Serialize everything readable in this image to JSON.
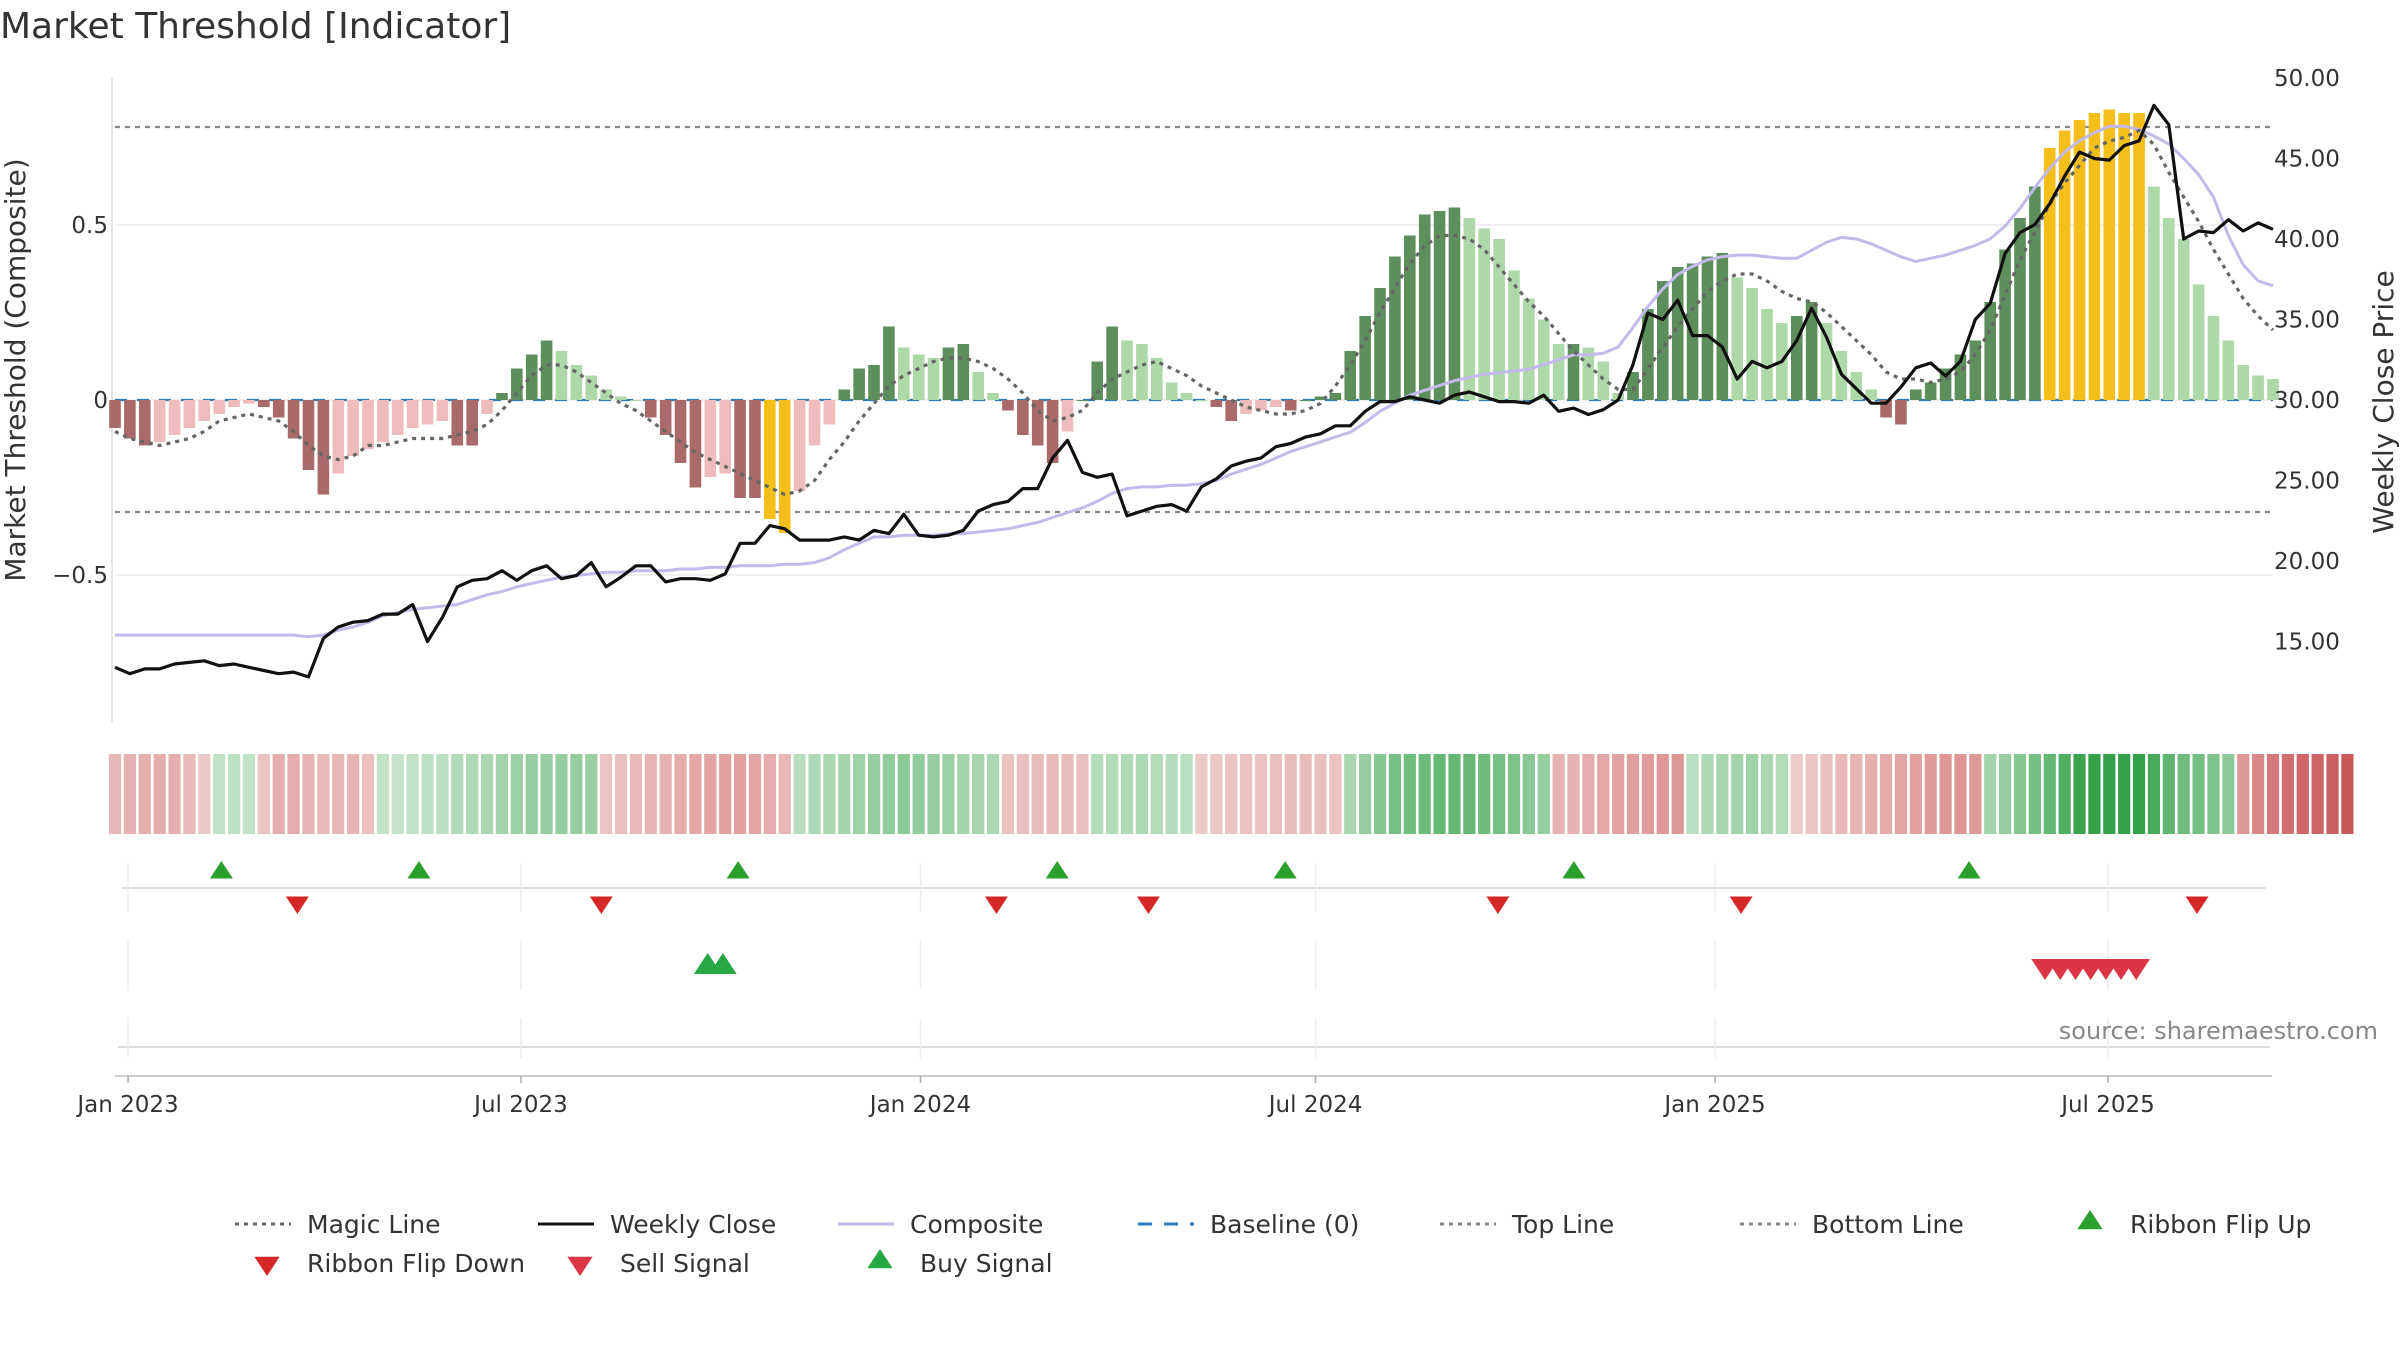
{
  "chart_data": {
    "type": "bar",
    "title": "Market Threshold [Indicator]",
    "ylabel": "Market Threshold (Composite)",
    "y2label": "Weekly Close Price",
    "ylim": [
      -0.92,
      0.92
    ],
    "y2lim": [
      10.0,
      50.0
    ],
    "y_ticks": [
      0.5,
      0,
      -0.5
    ],
    "y_tick_labels": [
      "0.5",
      "0",
      "−0.5"
    ],
    "y2_ticks": [
      50,
      45,
      40,
      35,
      30,
      25,
      20,
      15
    ],
    "y2_tick_labels": [
      "50.00",
      "45.00",
      "40.00",
      "35.00",
      "30.00",
      "25.00",
      "20.00",
      "15.00"
    ],
    "x_start": "2022-12-26",
    "x_end": "2025-09-15",
    "x_ticks": [
      "2023-01-01",
      "2023-07-01",
      "2024-01-01",
      "2024-07-01",
      "2025-01-01",
      "2025-07-01"
    ],
    "x_tick_labels": [
      "Jan 2023",
      "Jul 2023",
      "Jan 2024",
      "Jul 2024",
      "Jan 2025",
      "Jul 2025"
    ],
    "top_line": 0.78,
    "bottom_line": -0.32,
    "baseline": 0,
    "composite_bars": [
      -0.08,
      -0.11,
      -0.13,
      -0.12,
      -0.1,
      -0.08,
      -0.06,
      -0.04,
      -0.02,
      -0.01,
      -0.02,
      -0.05,
      -0.11,
      -0.2,
      -0.27,
      -0.21,
      -0.16,
      -0.14,
      -0.12,
      -0.1,
      -0.08,
      -0.07,
      -0.06,
      -0.13,
      -0.13,
      -0.04,
      0.02,
      0.09,
      0.13,
      0.17,
      0.14,
      0.1,
      0.07,
      0.03,
      0.01,
      0.0,
      -0.05,
      -0.1,
      -0.18,
      -0.25,
      -0.22,
      -0.21,
      -0.28,
      -0.28,
      -0.34,
      -0.38,
      -0.26,
      -0.13,
      -0.07,
      0.03,
      0.09,
      0.1,
      0.21,
      0.15,
      0.13,
      0.12,
      0.15,
      0.16,
      0.08,
      0.02,
      -0.03,
      -0.1,
      -0.13,
      -0.18,
      -0.09,
      0.0,
      0.11,
      0.21,
      0.17,
      0.16,
      0.12,
      0.05,
      0.02,
      0.0,
      -0.02,
      -0.06,
      -0.04,
      -0.03,
      -0.02,
      -0.03,
      0.0,
      0.01,
      0.02,
      0.14,
      0.24,
      0.32,
      0.41,
      0.47,
      0.53,
      0.54,
      0.55,
      0.52,
      0.49,
      0.46,
      0.37,
      0.29,
      0.23,
      0.16,
      0.16,
      0.15,
      0.11,
      0.02,
      0.08,
      0.26,
      0.34,
      0.38,
      0.39,
      0.41,
      0.42,
      0.35,
      0.32,
      0.26,
      0.22,
      0.24,
      0.28,
      0.22,
      0.14,
      0.08,
      0.03,
      -0.05,
      -0.07,
      0.03,
      0.05,
      0.09,
      0.13,
      0.17,
      0.28,
      0.43,
      0.52,
      0.61,
      0.72,
      0.77,
      0.8,
      0.82,
      0.83,
      0.82,
      0.82,
      0.61,
      0.52,
      0.46,
      0.33,
      0.24,
      0.17,
      0.1,
      0.07,
      0.06
    ],
    "magic_line": [
      -0.09,
      -0.11,
      -0.12,
      -0.13,
      -0.12,
      -0.11,
      -0.09,
      -0.06,
      -0.05,
      -0.04,
      -0.05,
      -0.06,
      -0.09,
      -0.13,
      -0.16,
      -0.17,
      -0.16,
      -0.13,
      -0.13,
      -0.12,
      -0.11,
      -0.11,
      -0.11,
      -0.1,
      -0.09,
      -0.07,
      -0.03,
      0.02,
      0.07,
      0.1,
      0.1,
      0.08,
      0.05,
      0.02,
      -0.01,
      -0.03,
      -0.06,
      -0.09,
      -0.12,
      -0.15,
      -0.17,
      -0.19,
      -0.21,
      -0.23,
      -0.25,
      -0.27,
      -0.26,
      -0.23,
      -0.17,
      -0.12,
      -0.06,
      -0.01,
      0.04,
      0.07,
      0.09,
      0.11,
      0.12,
      0.12,
      0.11,
      0.09,
      0.06,
      0.02,
      -0.03,
      -0.06,
      -0.05,
      -0.03,
      0.02,
      0.06,
      0.08,
      0.1,
      0.11,
      0.09,
      0.07,
      0.04,
      0.02,
      0.0,
      -0.02,
      -0.03,
      -0.04,
      -0.04,
      -0.03,
      -0.01,
      0.04,
      0.1,
      0.17,
      0.25,
      0.32,
      0.39,
      0.44,
      0.47,
      0.47,
      0.46,
      0.43,
      0.38,
      0.33,
      0.28,
      0.24,
      0.19,
      0.14,
      0.1,
      0.06,
      0.03,
      0.03,
      0.09,
      0.15,
      0.21,
      0.26,
      0.31,
      0.34,
      0.36,
      0.36,
      0.34,
      0.31,
      0.29,
      0.28,
      0.25,
      0.21,
      0.17,
      0.13,
      0.08,
      0.06,
      0.06,
      0.05,
      0.06,
      0.08,
      0.13,
      0.2,
      0.3,
      0.4,
      0.48,
      0.56,
      0.62,
      0.67,
      0.72,
      0.74,
      0.75,
      0.77,
      0.73,
      0.65,
      0.58,
      0.51,
      0.43,
      0.36,
      0.29,
      0.24,
      0.2
    ],
    "weekly_close": [
      13.4,
      13.0,
      13.3,
      13.3,
      13.6,
      13.7,
      13.8,
      13.5,
      13.6,
      13.4,
      13.2,
      13.0,
      13.1,
      12.8,
      15.2,
      15.9,
      16.2,
      16.3,
      16.7,
      16.7,
      17.3,
      15.0,
      16.5,
      18.4,
      18.8,
      18.9,
      19.4,
      18.8,
      19.4,
      19.7,
      18.9,
      19.1,
      19.9,
      18.4,
      19.0,
      19.7,
      19.7,
      18.7,
      18.9,
      18.9,
      18.8,
      19.2,
      21.1,
      21.1,
      22.2,
      22.0,
      21.3,
      21.3,
      21.3,
      21.5,
      21.3,
      21.9,
      21.7,
      22.9,
      21.6,
      21.5,
      21.6,
      21.9,
      23.1,
      23.5,
      23.7,
      24.5,
      24.5,
      26.4,
      27.5,
      25.5,
      25.2,
      25.4,
      22.8,
      23.1,
      23.4,
      23.5,
      23.1,
      24.6,
      25.1,
      25.9,
      26.2,
      26.4,
      27.1,
      27.3,
      27.7,
      27.9,
      28.4,
      28.4,
      29.3,
      29.9,
      29.9,
      30.2,
      30.0,
      29.8,
      30.3,
      30.5,
      30.2,
      29.9,
      29.9,
      29.8,
      30.3,
      29.3,
      29.5,
      29.1,
      29.4,
      30.0,
      32.2,
      35.4,
      35.0,
      36.2,
      34.0,
      34.0,
      33.3,
      31.3,
      32.4,
      32.0,
      32.4,
      33.7,
      35.7,
      33.9,
      31.6,
      30.7,
      29.8,
      29.8,
      30.8,
      32.0,
      32.3,
      31.5,
      32.4,
      35.0,
      36.0,
      39.1,
      40.4,
      40.9,
      42.2,
      43.9,
      45.4,
      45.0,
      44.9,
      45.8,
      46.1,
      48.3,
      47.1,
      40.0,
      40.5,
      40.4,
      41.2,
      40.5,
      41.0,
      40.6
    ],
    "composite_line": [
      15.4,
      15.4,
      15.4,
      15.4,
      15.4,
      15.4,
      15.4,
      15.4,
      15.4,
      15.4,
      15.4,
      15.4,
      15.4,
      15.3,
      15.4,
      15.7,
      15.9,
      16.2,
      16.6,
      16.8,
      17.0,
      17.1,
      17.2,
      17.3,
      17.6,
      17.9,
      18.1,
      18.4,
      18.6,
      18.8,
      19.0,
      19.1,
      19.2,
      19.3,
      19.3,
      19.4,
      19.4,
      19.4,
      19.5,
      19.5,
      19.6,
      19.6,
      19.7,
      19.7,
      19.7,
      19.8,
      19.8,
      19.9,
      20.2,
      20.7,
      21.1,
      21.5,
      21.5,
      21.6,
      21.6,
      21.6,
      21.7,
      21.7,
      21.8,
      21.9,
      22.0,
      22.2,
      22.4,
      22.7,
      23.0,
      23.3,
      23.7,
      24.2,
      24.5,
      24.6,
      24.6,
      24.7,
      24.7,
      24.8,
      25.0,
      25.4,
      25.7,
      26.0,
      26.4,
      26.8,
      27.1,
      27.4,
      27.7,
      28.0,
      28.6,
      29.3,
      29.8,
      30.3,
      30.6,
      30.9,
      31.2,
      31.4,
      31.6,
      31.7,
      31.8,
      31.9,
      32.2,
      32.5,
      32.8,
      32.8,
      32.9,
      33.3,
      34.5,
      35.8,
      36.9,
      37.8,
      38.3,
      38.7,
      38.9,
      39.0,
      39.0,
      38.9,
      38.8,
      38.8,
      39.3,
      39.8,
      40.1,
      40.0,
      39.7,
      39.3,
      38.9,
      38.6,
      38.8,
      39.0,
      39.3,
      39.6,
      40.0,
      40.8,
      41.9,
      43.2,
      44.4,
      45.4,
      46.1,
      46.6,
      47.0,
      47.0,
      46.8,
      46.4,
      45.9,
      45.0,
      44.0,
      42.6,
      40.2,
      38.4,
      37.4,
      37.1
    ],
    "ribbon": [
      -0.13,
      -0.15,
      -0.16,
      -0.17,
      -0.16,
      -0.12,
      -0.06,
      0.06,
      0.08,
      0.07,
      -0.08,
      -0.16,
      -0.17,
      -0.14,
      -0.12,
      -0.13,
      -0.14,
      -0.09,
      0.06,
      0.05,
      0.06,
      0.08,
      0.1,
      0.12,
      0.13,
      0.15,
      0.18,
      0.2,
      0.22,
      0.22,
      0.23,
      0.22,
      0.2,
      -0.08,
      -0.1,
      -0.12,
      -0.14,
      -0.15,
      -0.17,
      -0.19,
      -0.21,
      -0.22,
      -0.22,
      -0.2,
      -0.17,
      -0.13,
      0.1,
      0.13,
      0.15,
      0.17,
      0.19,
      0.22,
      0.24,
      0.26,
      0.24,
      0.22,
      0.2,
      0.18,
      0.16,
      0.14,
      -0.08,
      -0.1,
      -0.11,
      -0.12,
      -0.11,
      -0.1,
      0.12,
      0.12,
      0.13,
      0.13,
      0.12,
      0.11,
      0.1,
      -0.06,
      -0.07,
      -0.08,
      -0.09,
      -0.09,
      -0.1,
      -0.11,
      -0.11,
      -0.1,
      -0.09,
      0.15,
      0.22,
      0.28,
      0.33,
      0.36,
      0.38,
      0.4,
      0.4,
      0.39,
      0.36,
      0.33,
      0.3,
      0.27,
      0.23,
      -0.14,
      -0.15,
      -0.17,
      -0.19,
      -0.21,
      -0.23,
      -0.24,
      -0.25,
      -0.26,
      0.1,
      0.13,
      0.16,
      0.18,
      0.19,
      0.15,
      0.12,
      -0.05,
      -0.08,
      -0.1,
      -0.12,
      -0.14,
      -0.16,
      -0.18,
      -0.2,
      -0.22,
      -0.24,
      -0.26,
      -0.27,
      -0.25,
      0.18,
      0.22,
      0.28,
      0.34,
      0.4,
      0.47,
      0.55,
      0.6,
      0.62,
      0.6,
      0.58,
      0.5,
      0.42,
      0.36,
      0.34,
      0.3,
      0.26,
      -0.25,
      -0.32,
      -0.38,
      -0.42,
      -0.45,
      -0.46,
      -0.48,
      -0.5
    ],
    "ribbon_flip_up": [
      "2023-02-13",
      "2023-05-15",
      "2023-10-09",
      "2024-03-04",
      "2024-06-17",
      "2024-10-28",
      "2025-04-28"
    ],
    "ribbon_flip_down": [
      "2023-03-20",
      "2023-08-07",
      "2024-02-05",
      "2024-04-15",
      "2024-09-23",
      "2025-01-13",
      "2025-08-11"
    ],
    "buy_signal": [
      "2023-09-25",
      "2023-10-02"
    ],
    "sell_signal": [
      "2025-06-02",
      "2025-06-09",
      "2025-06-16",
      "2025-06-23",
      "2025-06-30",
      "2025-07-07",
      "2025-07-14"
    ],
    "source": "source: sharemaestro.com",
    "legend": [
      {
        "name": "Magic Line",
        "style": "dotted",
        "color": "#666666"
      },
      {
        "name": "Weekly Close",
        "style": "solid",
        "color": "#111111"
      },
      {
        "name": "Composite",
        "style": "solid",
        "color": "#c3b9ea"
      },
      {
        "name": "Baseline (0)",
        "style": "dashed",
        "color": "#2c7bb6"
      },
      {
        "name": "Top Line",
        "style": "dotted",
        "color": "#888888"
      },
      {
        "name": "Bottom Line",
        "style": "dotted",
        "color": "#888888"
      },
      {
        "name": "Ribbon Flip Up",
        "style": "marker-up",
        "color": "#2ca02c"
      },
      {
        "name": "Ribbon Flip Down",
        "style": "marker-down",
        "color": "#d62728"
      },
      {
        "name": "Sell Signal",
        "style": "marker-down",
        "color": "#dc3545"
      },
      {
        "name": "Buy Signal",
        "style": "marker-up",
        "color": "#28a745"
      }
    ],
    "colors": {
      "strong_up": "#5c8f5c",
      "weak_up": "#add8a8",
      "strong_down": "#a86a6a",
      "weak_down": "#eebcbc",
      "extreme": "#f5bf1b",
      "magic_line": "#666666",
      "weekly_close": "#111111",
      "composite_line": "#c3b9ea",
      "baseline": "#2c7bb6",
      "threshold_lines": "#888888"
    }
  }
}
